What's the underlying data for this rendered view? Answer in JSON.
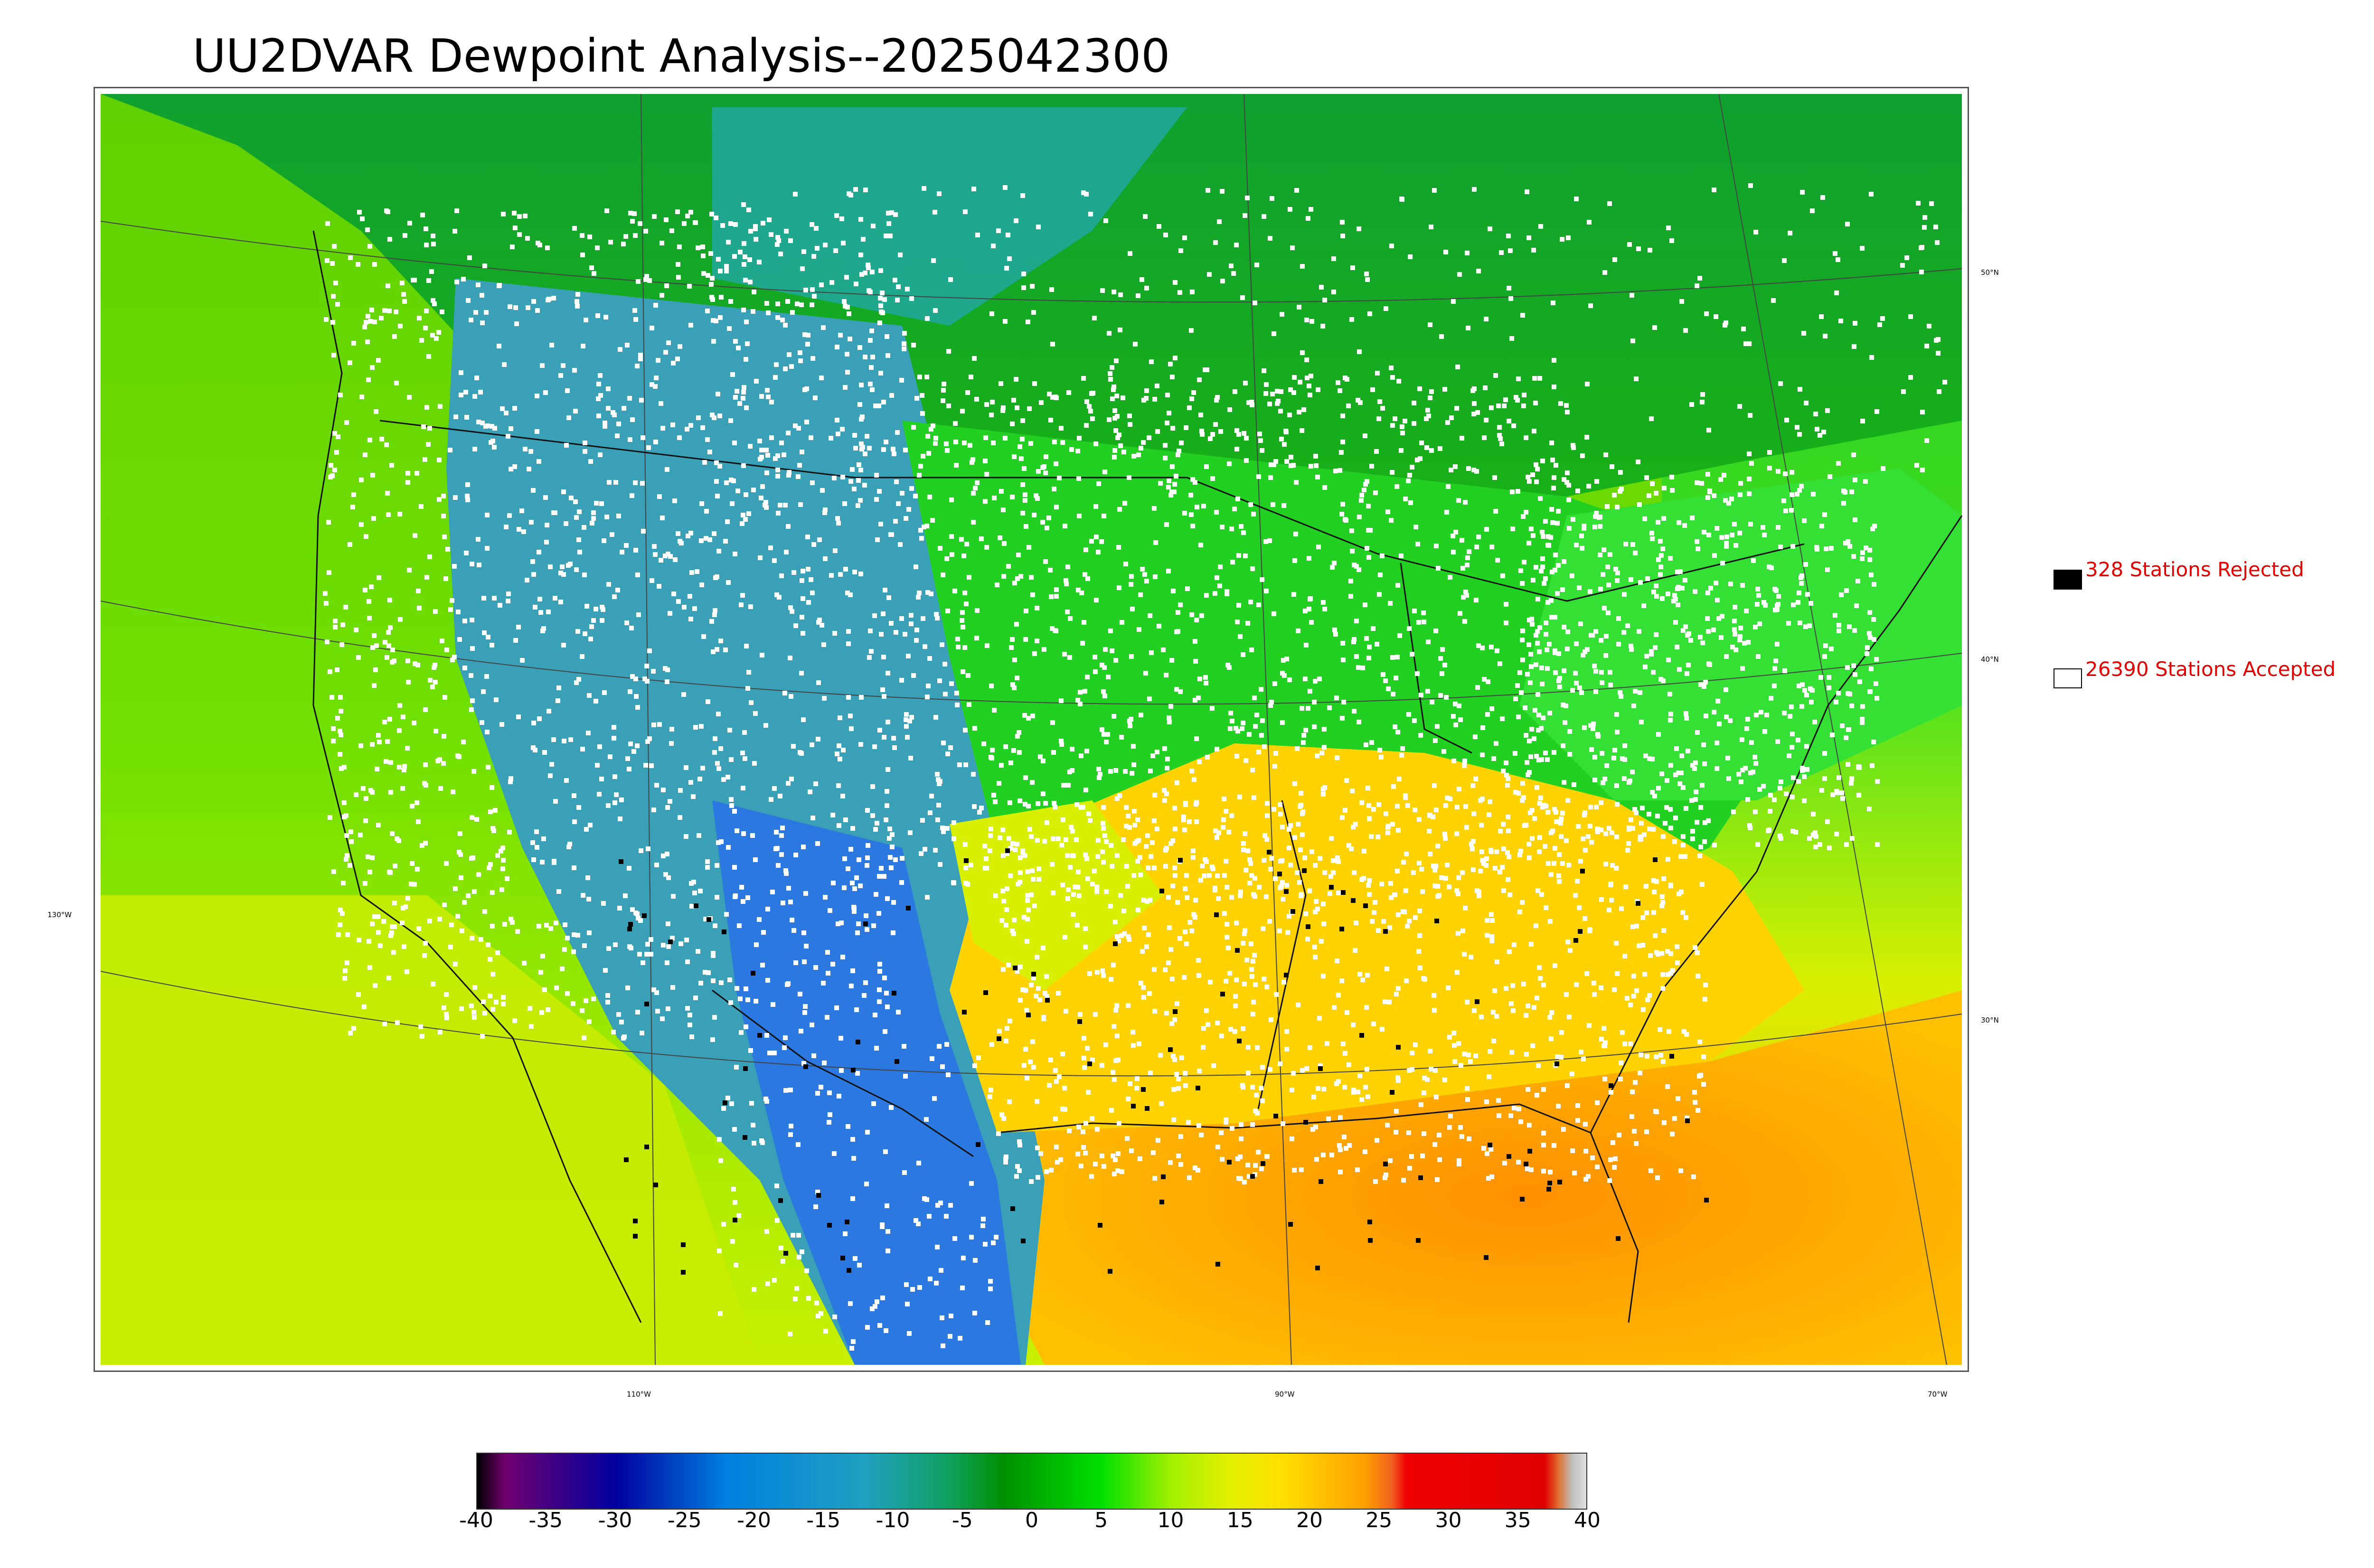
{
  "title": "UU2DVAR Dewpoint Analysis--2025042300",
  "map": {
    "lat_labels": [
      {
        "text": "50°N"
      },
      {
        "text": "40°N"
      },
      {
        "text": "30°N"
      }
    ],
    "lon_labels": [
      {
        "text": "130°W"
      },
      {
        "text": "110°W"
      },
      {
        "text": "90°W"
      },
      {
        "text": "70°W"
      }
    ],
    "field_colors": {
      "ocean_west": "#8ee000",
      "ocean_southwest": "#c4f000",
      "gulf": "#ffa000",
      "atlantic_south": "#ffc000",
      "canada": "#18a818",
      "great_basin": "#3aa0b8",
      "southwest_low": "#2a78e0",
      "southeast": "#ffd800",
      "midwest": "#22d822",
      "station_accepted": "#ffffff",
      "station_rejected": "#000000"
    }
  },
  "legend": {
    "rejected_label": "328 Stations Rejected",
    "accepted_label": "26390 Stations Accepted",
    "label_color": "#e00000"
  },
  "colorbar": {
    "ticks": [
      "-40",
      "-35",
      "-30",
      "-25",
      "-20",
      "-15",
      "-10",
      "-5",
      "0",
      "5",
      "10",
      "15",
      "20",
      "25",
      "30",
      "35",
      "40"
    ],
    "range": [
      -40,
      40
    ],
    "stops": [
      {
        "value": -40,
        "color": "#000000"
      },
      {
        "value": -38,
        "color": "#700070"
      },
      {
        "value": -30,
        "color": "#0000a0"
      },
      {
        "value": -22,
        "color": "#0080e0"
      },
      {
        "value": -12,
        "color": "#20a0c0"
      },
      {
        "value": -6,
        "color": "#10a060"
      },
      {
        "value": -2,
        "color": "#009000"
      },
      {
        "value": 5,
        "color": "#00e000"
      },
      {
        "value": 10,
        "color": "#a0f000"
      },
      {
        "value": 14,
        "color": "#e0f000"
      },
      {
        "value": 18,
        "color": "#ffe000"
      },
      {
        "value": 24,
        "color": "#ffa000"
      },
      {
        "value": 26,
        "color": "#f06020"
      },
      {
        "value": 27,
        "color": "#f00000"
      },
      {
        "value": 37,
        "color": "#e00000"
      },
      {
        "value": 38,
        "color": "#e07030"
      },
      {
        "value": 39,
        "color": "#c0c0c0"
      },
      {
        "value": 40,
        "color": "#e0e0e0"
      }
    ]
  }
}
